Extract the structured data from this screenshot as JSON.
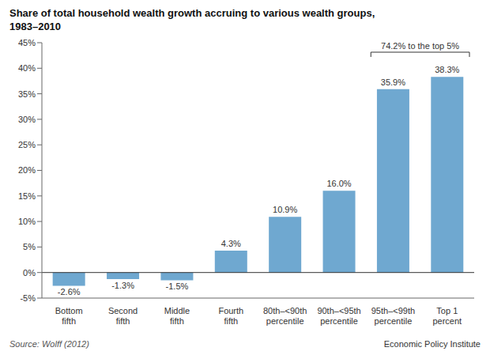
{
  "chart_data": {
    "type": "bar",
    "title": "Share of total household wealth growth accruing to various wealth groups,\n1983–2010",
    "categories": [
      "Bottom\nfifth",
      "Second\nfifth",
      "Middle\nfifth",
      "Fourth\nfifth",
      "80th–<90th\npercentile",
      "90th–<95th\npercentile",
      "95th–<99th\npercentile",
      "Top 1\npercent"
    ],
    "values": [
      -2.6,
      -1.3,
      -1.5,
      4.3,
      10.9,
      16.0,
      35.9,
      38.3
    ],
    "value_labels": [
      "-2.6%",
      "-1.3%",
      "-1.5%",
      "4.3%",
      "10.9%",
      "16.0%",
      "35.9%",
      "38.3%"
    ],
    "data_labels": true,
    "color": "#6fa8d0",
    "ylim": [
      -5,
      45
    ],
    "yticks": [
      {
        "value": -5,
        "label": "-5%"
      },
      {
        "value": 0,
        "label": "0%"
      },
      {
        "value": 5,
        "label": "5%"
      },
      {
        "value": 10,
        "label": "10%"
      },
      {
        "value": 15,
        "label": "15%"
      },
      {
        "value": 20,
        "label": "20%"
      },
      {
        "value": 25,
        "label": "25%"
      },
      {
        "value": 30,
        "label": "30%"
      },
      {
        "value": 35,
        "label": "35%"
      },
      {
        "value": 40,
        "label": "40%"
      },
      {
        "value": 45,
        "label": "45%"
      }
    ],
    "grid": false,
    "annotation": "74.2% to the top 5%",
    "source": "Source: Wolff (2012)",
    "credit": "Economic Policy Institute"
  }
}
